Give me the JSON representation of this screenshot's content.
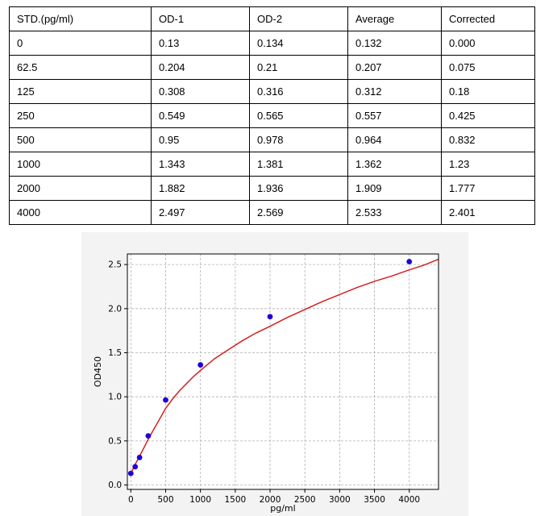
{
  "table": {
    "headers": [
      "STD.(pg/ml)",
      "OD-1",
      "OD-2",
      "Average",
      "Corrected"
    ],
    "rows": [
      [
        "0",
        "0.13",
        "0.134",
        "0.132",
        "0.000"
      ],
      [
        "62.5",
        "0.204",
        "0.21",
        "0.207",
        "0.075"
      ],
      [
        "125",
        "0.308",
        "0.316",
        "0.312",
        "0.18"
      ],
      [
        "250",
        "0.549",
        "0.565",
        "0.557",
        "0.425"
      ],
      [
        "500",
        "0.95",
        "0.978",
        "0.964",
        "0.832"
      ],
      [
        "1000",
        "1.343",
        "1.381",
        "1.362",
        "1.23"
      ],
      [
        "2000",
        "1.882",
        "1.936",
        "1.909",
        "1.777"
      ],
      [
        "4000",
        "2.497",
        "2.569",
        "2.533",
        "2.401"
      ]
    ]
  },
  "chart_data": {
    "type": "scatter",
    "title": "",
    "xlabel": "pg/ml",
    "ylabel": "OD450",
    "xlim": [
      -50,
      4420
    ],
    "ylim": [
      -0.05,
      2.62
    ],
    "xticks": [
      0,
      500,
      1000,
      1500,
      2000,
      2500,
      3000,
      3500,
      4000
    ],
    "yticks": [
      0.0,
      0.5,
      1.0,
      1.5,
      2.0,
      2.5
    ],
    "ytick_labels": [
      "0.0",
      "0.5",
      "1.0",
      "1.5",
      "2.0",
      "2.5"
    ],
    "grid": true,
    "points": {
      "x": [
        0,
        62.5,
        125,
        250,
        500,
        1000,
        2000,
        4000
      ],
      "y": [
        0.132,
        0.207,
        0.312,
        0.557,
        0.964,
        1.362,
        1.909,
        2.533
      ]
    },
    "fit_curve": {
      "x": [
        0,
        25,
        50,
        100,
        150,
        200,
        250,
        300,
        400,
        500,
        600,
        700,
        800,
        900,
        1000,
        1200,
        1400,
        1600,
        1800,
        2000,
        2250,
        2500,
        2750,
        3000,
        3250,
        3500,
        3750,
        4000,
        4200,
        4420
      ],
      "y": [
        0.132,
        0.17,
        0.215,
        0.29,
        0.365,
        0.44,
        0.52,
        0.59,
        0.73,
        0.87,
        0.975,
        1.07,
        1.15,
        1.23,
        1.3,
        1.43,
        1.535,
        1.635,
        1.725,
        1.8,
        1.9,
        1.99,
        2.08,
        2.16,
        2.24,
        2.31,
        2.37,
        2.44,
        2.49,
        2.56
      ]
    },
    "colors": {
      "points": "#1f00d6",
      "curve": "#d62020",
      "grid": "#b0b0b0",
      "background": "#f3f3f3"
    }
  }
}
